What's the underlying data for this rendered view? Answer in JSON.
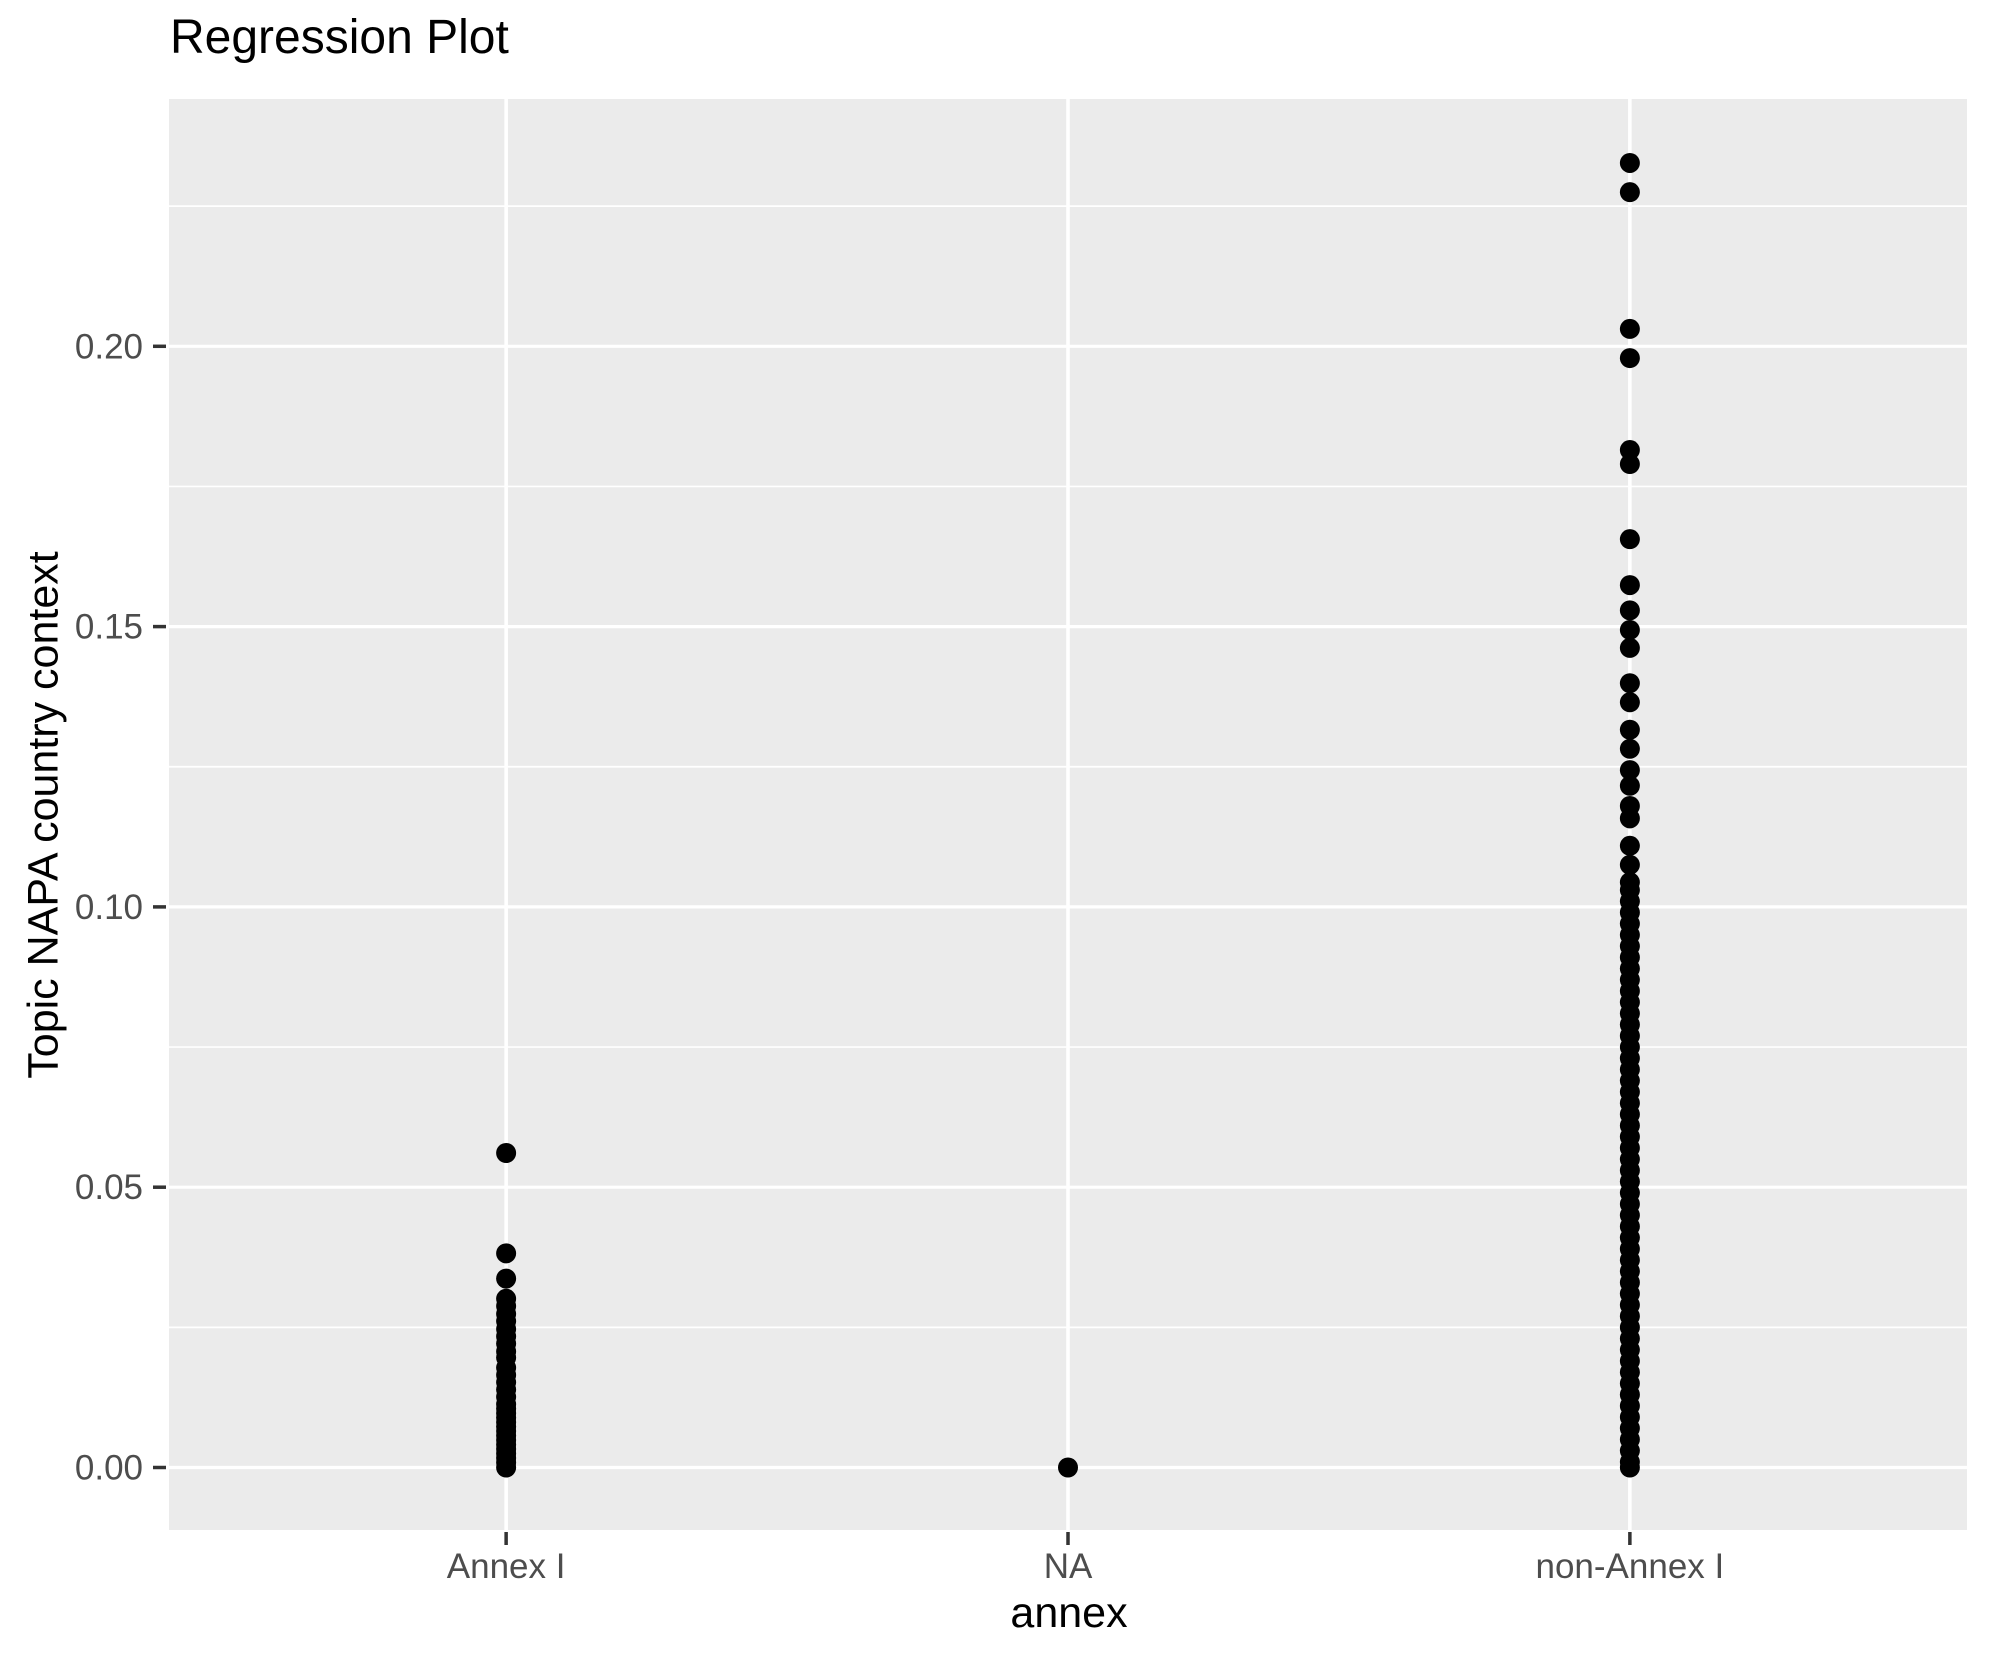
{
  "title": "Regression Plot",
  "chart_data": {
    "type": "scatter",
    "subtype": "strip-plot-categorical-x",
    "title": "Regression Plot",
    "xlabel": "annex",
    "ylabel": "Topic NAPA country context",
    "categories": [
      "Annex I",
      "NA",
      "non-Annex I"
    ],
    "y_ticks": [
      0.0,
      0.05,
      0.1,
      0.15,
      0.2
    ],
    "y_tick_labels": [
      "0.00",
      "0.05",
      "0.10",
      "0.15",
      "0.20"
    ],
    "y_minor_ticks": [
      0.025,
      0.075,
      0.125,
      0.175,
      0.225
    ],
    "ylim": [
      -0.011,
      0.2442
    ],
    "grid": true,
    "legend_position": "none",
    "style": {
      "panel_bg": "#EBEBEB",
      "grid_color": "#FFFFFF",
      "point_color": "#000000",
      "tick_mark_color": "#333333",
      "tick_label_color": "#4D4D4D",
      "title_color": "#000000"
    },
    "series": [
      {
        "name": "Annex I",
        "values": [
          0.0561,
          0.0382,
          0.0337,
          0.0301,
          0.0288,
          0.0274,
          0.0261,
          0.0247,
          0.0234,
          0.0221,
          0.0207,
          0.0196,
          0.0178,
          0.0165,
          0.0152,
          0.0139,
          0.0126,
          0.0113,
          0.0105,
          0.0097,
          0.0089,
          0.0081,
          0.0073,
          0.0065,
          0.0057,
          0.0049,
          0.0041,
          0.0033,
          0.0025,
          0.0017,
          0.0009,
          0.0
        ]
      },
      {
        "name": "NA",
        "values": [
          0.0
        ]
      },
      {
        "name": "non-Annex I",
        "values": [
          0.2327,
          0.2275,
          0.2031,
          0.1979,
          0.1815,
          0.179,
          0.1656,
          0.1574,
          0.1529,
          0.1494,
          0.1462,
          0.1399,
          0.1365,
          0.1316,
          0.1282,
          0.1244,
          0.1216,
          0.118,
          0.1158,
          0.1109,
          0.1075,
          0.1044,
          0.103,
          0.101,
          0.099,
          0.097,
          0.095,
          0.093,
          0.091,
          0.089,
          0.087,
          0.085,
          0.083,
          0.081,
          0.079,
          0.077,
          0.075,
          0.073,
          0.071,
          0.069,
          0.067,
          0.065,
          0.063,
          0.061,
          0.059,
          0.057,
          0.055,
          0.053,
          0.051,
          0.049,
          0.047,
          0.045,
          0.043,
          0.041,
          0.039,
          0.037,
          0.035,
          0.033,
          0.031,
          0.029,
          0.027,
          0.025,
          0.023,
          0.021,
          0.019,
          0.017,
          0.015,
          0.013,
          0.011,
          0.009,
          0.007,
          0.005,
          0.003,
          0.001,
          0.0
        ]
      }
    ]
  }
}
